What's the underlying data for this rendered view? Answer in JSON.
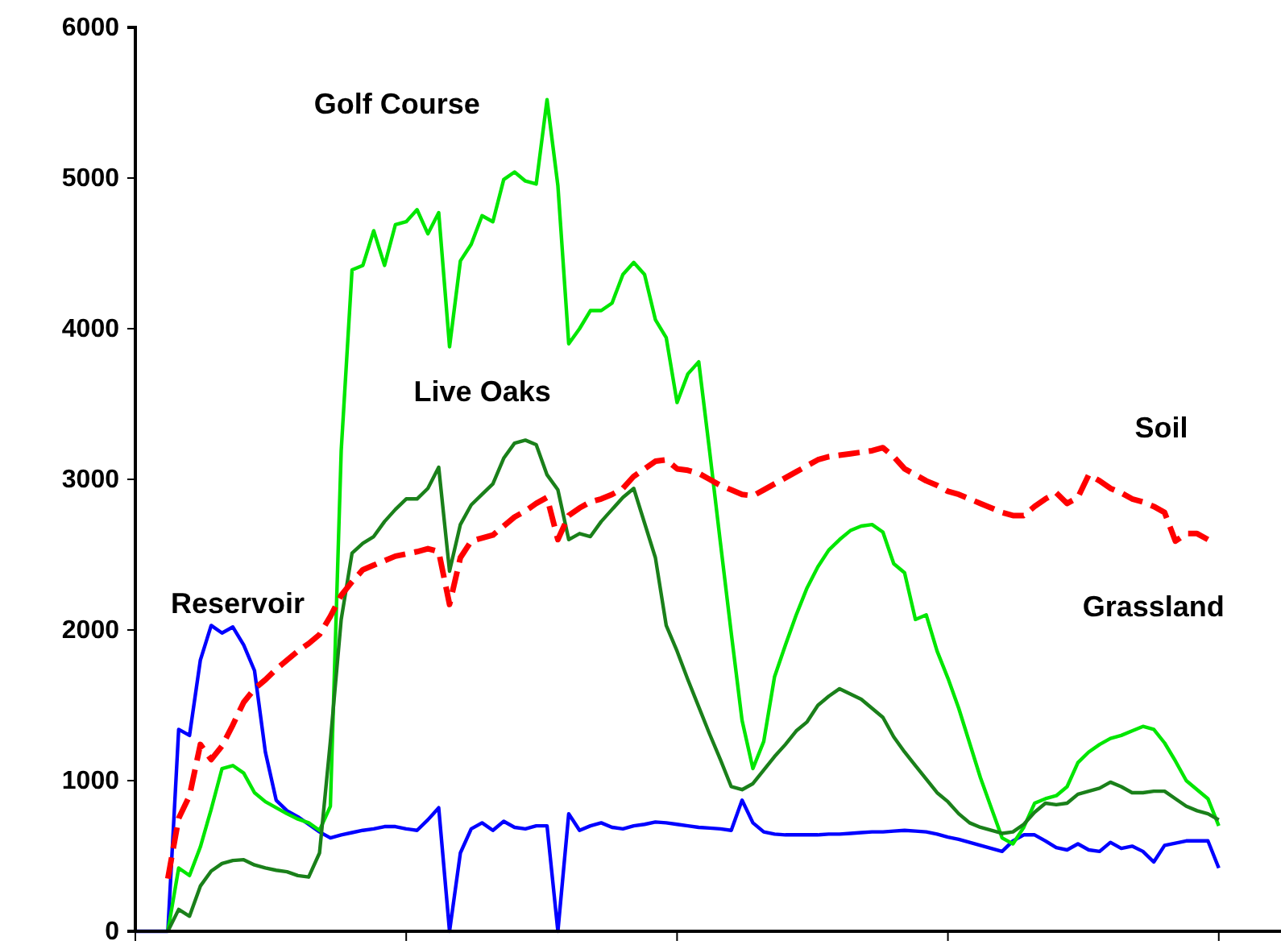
{
  "chart_data": {
    "type": "line",
    "categories": [
      null,
      null,
      null,
      null,
      null,
      null,
      null,
      null,
      null,
      null,
      null,
      null,
      null,
      null,
      null,
      null,
      null,
      null,
      null,
      null,
      null,
      null,
      null,
      null,
      null,
      null,
      null,
      null,
      null,
      null,
      null,
      null,
      null,
      null,
      null,
      null,
      null,
      null,
      null,
      null,
      null,
      null,
      null,
      null,
      null,
      null,
      null,
      null,
      null,
      null,
      null,
      null,
      null,
      null,
      null,
      null,
      null,
      null,
      null,
      null,
      null,
      null,
      null,
      null,
      null,
      null,
      null,
      null,
      null,
      null,
      null,
      null,
      null,
      null,
      null,
      null,
      null,
      null,
      null,
      null,
      null,
      null,
      null,
      null,
      null,
      null,
      null,
      null,
      null,
      null,
      null,
      null,
      null,
      null,
      null,
      null,
      null,
      null,
      null,
      null,
      null,
      null,
      null,
      null,
      null,
      null
    ],
    "ylim": [
      0,
      6000
    ],
    "yticks": [
      0,
      1000,
      2000,
      3000,
      4000,
      5000,
      6000
    ],
    "grid": false,
    "legend": false,
    "marker": "none",
    "annotations": [
      "Grassland"
    ],
    "series": [
      {
        "name": "Reservoir",
        "color": "#0000ff",
        "line_style": "solid",
        "values": [
          0,
          0,
          0,
          0,
          1340,
          1300,
          1800,
          2030,
          1980,
          2020,
          1900,
          1730,
          1190,
          870,
          800,
          760,
          710,
          660,
          620,
          640,
          655,
          670,
          680,
          695,
          695,
          680,
          670,
          740,
          820,
          0,
          520,
          680,
          720,
          670,
          730,
          690,
          680,
          700,
          700,
          0,
          780,
          670,
          700,
          720,
          690,
          680,
          700,
          710,
          725,
          720,
          710,
          700,
          690,
          685,
          680,
          670,
          870,
          720,
          660,
          645,
          640,
          640,
          640,
          640,
          645,
          645,
          650,
          655,
          660,
          660,
          665,
          670,
          665,
          660,
          645,
          625,
          610,
          590,
          570,
          550,
          530,
          600,
          640,
          640,
          600,
          555,
          540,
          580,
          540,
          530,
          590,
          550,
          565,
          530,
          460,
          570,
          585,
          600,
          600,
          600,
          420,
          null,
          null,
          null,
          null,
          null
        ]
      },
      {
        "name": "Golf Course",
        "color": "#00e600",
        "line_style": "solid",
        "values": [
          null,
          null,
          null,
          0,
          420,
          370,
          560,
          810,
          1080,
          1100,
          1050,
          920,
          860,
          820,
          780,
          745,
          720,
          670,
          830,
          3190,
          4390,
          4420,
          4650,
          4420,
          4690,
          4710,
          4790,
          4630,
          4770,
          3880,
          4450,
          4560,
          4750,
          4710,
          4990,
          5040,
          4980,
          4960,
          5520,
          4950,
          3900,
          4000,
          4120,
          4120,
          4170,
          4360,
          4440,
          4360,
          4060,
          3940,
          3510,
          3700,
          3780,
          3190,
          2580,
          1980,
          1400,
          1080,
          1260,
          1690,
          1900,
          2100,
          2280,
          2420,
          2530,
          2600,
          2660,
          2690,
          2700,
          2650,
          2440,
          2380,
          2070,
          2100,
          1860,
          1680,
          1480,
          1250,
          1020,
          820,
          620,
          580,
          690,
          850,
          880,
          900,
          960,
          1120,
          1190,
          1240,
          1280,
          1300,
          1330,
          1360,
          1340,
          1250,
          1130,
          1000,
          940,
          880,
          700,
          null,
          null,
          null,
          null,
          null
        ]
      },
      {
        "name": "Live Oaks",
        "color": "#1a801a",
        "line_style": "solid",
        "values": [
          null,
          null,
          null,
          0,
          145,
          100,
          300,
          400,
          450,
          470,
          475,
          440,
          420,
          405,
          395,
          370,
          360,
          520,
          1260,
          2070,
          2510,
          2575,
          2620,
          2720,
          2800,
          2870,
          2870,
          2940,
          3080,
          2390,
          2700,
          2830,
          2900,
          2970,
          3140,
          3240,
          3260,
          3230,
          3030,
          2930,
          2600,
          2640,
          2620,
          2720,
          2800,
          2880,
          2940,
          2710,
          2480,
          2030,
          1860,
          1670,
          1490,
          1310,
          1140,
          960,
          940,
          980,
          1070,
          1160,
          1240,
          1330,
          1390,
          1500,
          1560,
          1610,
          1575,
          1540,
          1480,
          1420,
          1290,
          1190,
          1100,
          1010,
          920,
          860,
          780,
          720,
          690,
          670,
          650,
          660,
          710,
          790,
          850,
          840,
          850,
          910,
          930,
          950,
          990,
          960,
          920,
          920,
          930,
          930,
          880,
          830,
          800,
          780,
          740,
          null,
          null,
          null,
          null,
          null
        ]
      },
      {
        "name": "Soil",
        "color": "#ff0000",
        "line_style": "dashed",
        "values": [
          null,
          null,
          null,
          350,
          750,
          900,
          1240,
          1140,
          1230,
          1370,
          1520,
          1610,
          1670,
          1740,
          1800,
          1860,
          1910,
          1970,
          2090,
          2230,
          2320,
          2400,
          2430,
          2460,
          2490,
          2505,
          2520,
          2540,
          2520,
          2170,
          2480,
          2590,
          2610,
          2630,
          2690,
          2750,
          2790,
          2840,
          2880,
          2600,
          2760,
          2810,
          2850,
          2870,
          2900,
          2940,
          3020,
          3070,
          3120,
          3130,
          3070,
          3060,
          3040,
          3000,
          2960,
          2930,
          2900,
          2890,
          2930,
          2970,
          3010,
          3050,
          3090,
          3130,
          3150,
          3160,
          3170,
          3180,
          3190,
          3210,
          3150,
          3070,
          3030,
          2990,
          2960,
          2920,
          2900,
          2870,
          2840,
          2810,
          2780,
          2760,
          2760,
          2820,
          2870,
          2910,
          2840,
          2880,
          3030,
          2990,
          2940,
          2910,
          2870,
          2850,
          2820,
          2780,
          2590,
          2640,
          2640,
          2600,
          null,
          null,
          null,
          null,
          null,
          null
        ]
      }
    ]
  }
}
